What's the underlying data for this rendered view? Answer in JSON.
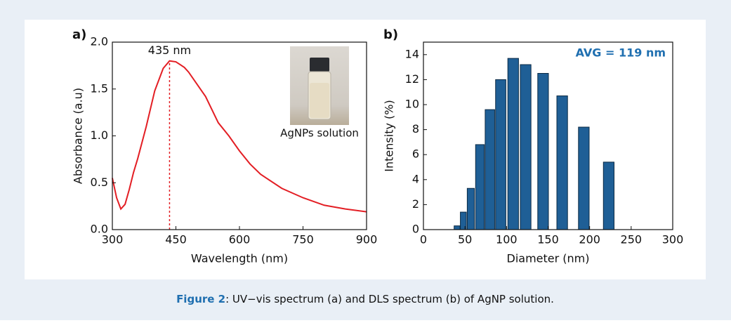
{
  "chart_data": [
    {
      "type": "line",
      "panel_label": "a)",
      "xlabel": "Wavelength (nm)",
      "ylabel": "Absorbance (a.u)",
      "x": [
        300,
        310,
        320,
        330,
        340,
        350,
        360,
        380,
        400,
        420,
        435,
        450,
        470,
        480,
        500,
        520,
        550,
        575,
        600,
        625,
        650,
        700,
        750,
        800,
        850,
        900
      ],
      "series": [
        {
          "color": "#e31e24",
          "values": [
            0.55,
            0.34,
            0.22,
            0.27,
            0.43,
            0.61,
            0.76,
            1.1,
            1.48,
            1.72,
            1.8,
            1.79,
            1.73,
            1.68,
            1.55,
            1.42,
            1.14,
            1.0,
            0.84,
            0.7,
            0.59,
            0.44,
            0.34,
            0.26,
            0.22,
            0.19
          ]
        }
      ],
      "xlim": [
        300,
        900
      ],
      "xticks": [
        300,
        450,
        600,
        750,
        900
      ],
      "ylim": [
        0,
        2
      ],
      "yticks": [
        {
          "value": 0,
          "label": "0.0"
        },
        0.5,
        {
          "value": 1,
          "label": "1.0"
        },
        1.5,
        {
          "value": 2,
          "label": "2.0"
        }
      ],
      "peak": {
        "x": 435,
        "label": "435 nm"
      },
      "inset_label": "AgNPs solution"
    },
    {
      "type": "bar",
      "panel_label": "b)",
      "xlabel": "Diameter (nm)",
      "ylabel": "Intensity (%)",
      "x": [
        40.5,
        48,
        57,
        68,
        80,
        93,
        108,
        123,
        144,
        167,
        193,
        223
      ],
      "values": [
        0.3,
        1.4,
        3.3,
        6.8,
        9.6,
        12.0,
        13.7,
        13.2,
        12.5,
        10.7,
        8.2,
        5.4
      ],
      "color": "#1f5f96",
      "xlim": [
        0,
        300
      ],
      "xticks": [
        0,
        50,
        100,
        150,
        200,
        250,
        300
      ],
      "ylim": [
        0,
        15
      ],
      "yticks": [
        0,
        2,
        4,
        6,
        8,
        10,
        12,
        14
      ],
      "annotation": "AVG = 119 nm",
      "annotation_color": "#1f6fb0"
    }
  ],
  "caption": {
    "label": "Figure 2",
    "text": ": UV−vis spectrum (a) and DLS spectrum (b) of AgNP solution."
  }
}
